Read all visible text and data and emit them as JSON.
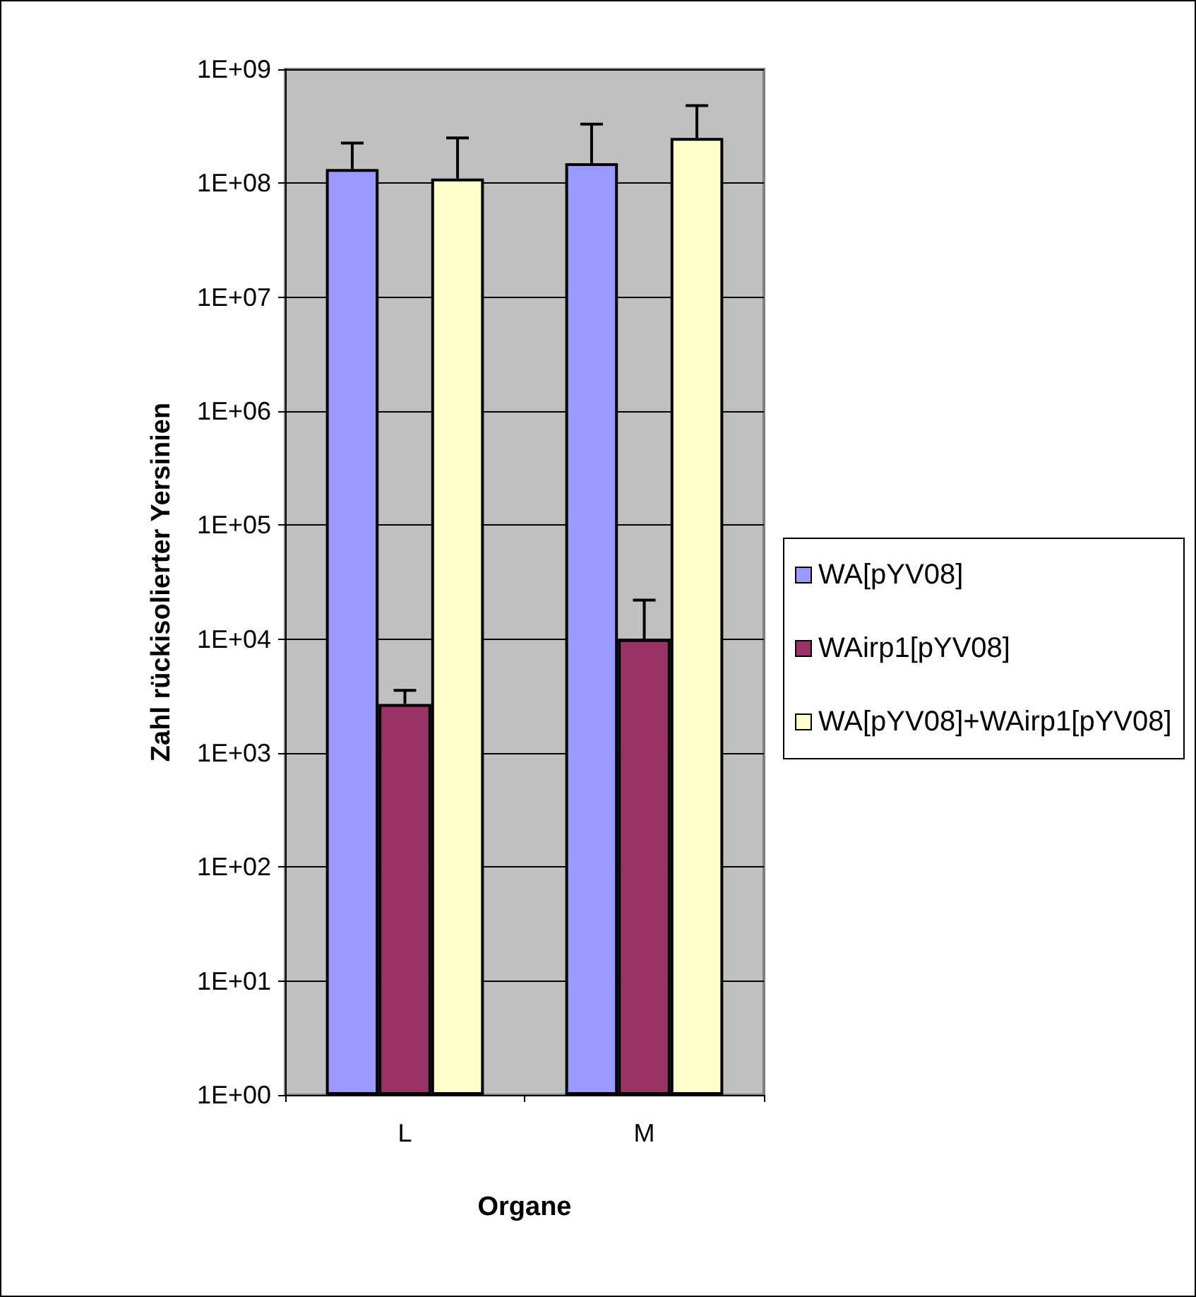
{
  "chart_data": {
    "type": "bar",
    "xlabel": "Organe",
    "ylabel": "Zahl rückisolierter Yersinien",
    "categories": [
      "L",
      "M"
    ],
    "series": [
      {
        "name": "WA[pYV08]",
        "color": "#9999ff",
        "values": [
          133000000.0,
          150000000.0
        ],
        "errors": [
          [
            133000000.0,
            225000000.0
          ],
          [
            150000000.0,
            330000000.0
          ]
        ]
      },
      {
        "name": "WAirp1[pYV08]",
        "color": "#993366",
        "values": [
          2700.0,
          10000.0
        ],
        "errors": [
          [
            2700.0,
            3550.0
          ],
          [
            10000.0,
            22000.0
          ]
        ]
      },
      {
        "name": "WA[pYV08]+WAirp1[pYV08]",
        "color": "#ffffcc",
        "values": [
          110000000.0,
          250000000.0
        ],
        "errors": [
          [
            110000000.0,
            250000000.0
          ],
          [
            250000000.0,
            480000000.0
          ]
        ]
      }
    ],
    "log": true,
    "ylim": [
      1,
      1000000000.0
    ],
    "yticks": [
      {
        "value": 1,
        "label": "1E+00"
      },
      {
        "value": 10,
        "label": "1E+01"
      },
      {
        "value": 100,
        "label": "1E+02"
      },
      {
        "value": 1000,
        "label": "1E+03"
      },
      {
        "value": 10000,
        "label": "1E+04"
      },
      {
        "value": 100000,
        "label": "1E+05"
      },
      {
        "value": 1000000,
        "label": "1E+06"
      },
      {
        "value": 10000000,
        "label": "1E+07"
      },
      {
        "value": 100000000,
        "label": "1E+08"
      },
      {
        "value": 1000000000,
        "label": "1E+09"
      }
    ],
    "grid": "y",
    "legend": "right"
  }
}
